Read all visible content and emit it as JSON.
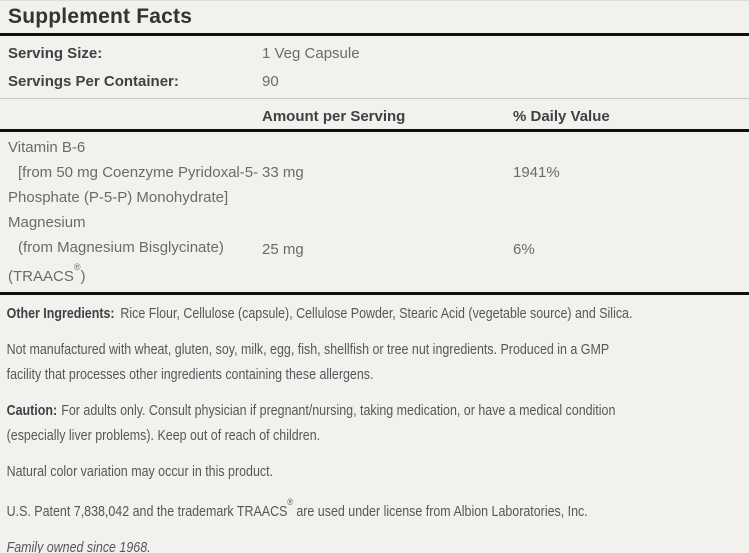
{
  "supplement_facts": {
    "title": "Supplement Facts",
    "serving": {
      "size_label": "Serving Size:",
      "size_value": "1 Veg Capsule",
      "per_container_label": "Servings Per Container:",
      "per_container_value": "90"
    },
    "columns": {
      "amount": "Amount per Serving",
      "daily_value": "% Daily Value"
    },
    "nutrients": [
      {
        "name_line1": "Vitamin B-6",
        "name_line2": "[from 50 mg Coenzyme Pyridoxal-5-",
        "name_line3": "Phosphate (P-5-P) Monohydrate]",
        "amount": "33 mg",
        "daily_value": "1941%"
      },
      {
        "name_line1": "Magnesium",
        "name_line2": "(from Magnesium Bisglycinate)",
        "name_line3_pre": "(TRAACS",
        "name_line3_reg": "®",
        "name_line3_post": ")",
        "amount": "25 mg",
        "daily_value": "6%"
      }
    ]
  },
  "notes": {
    "other_ingredients": {
      "label": "Other Ingredients:",
      "text": "Rice Flour, Cellulose (capsule), Cellulose Powder, Stearic Acid (vegetable source) and Silica."
    },
    "allergen": {
      "line1": "Not manufactured with wheat, gluten, soy, milk, egg, fish, shellfish or tree nut ingredients. Produced in a GMP",
      "line2": "facility that processes other ingredients containing these allergens."
    },
    "caution": {
      "label": "Caution:",
      "line1": "For adults only. Consult physician if pregnant/nursing, taking medication, or have a medical condition",
      "line2": "(especially liver problems). Keep out of reach of children."
    },
    "color_note": "Natural color variation may occur in this product.",
    "patent": {
      "pre": "U.S. Patent 7,838,042 and the trademark TRAACS",
      "reg": "®",
      "post": " are used under license from Albion Laboratories, Inc."
    },
    "tagline": "Family owned since 1968."
  }
}
